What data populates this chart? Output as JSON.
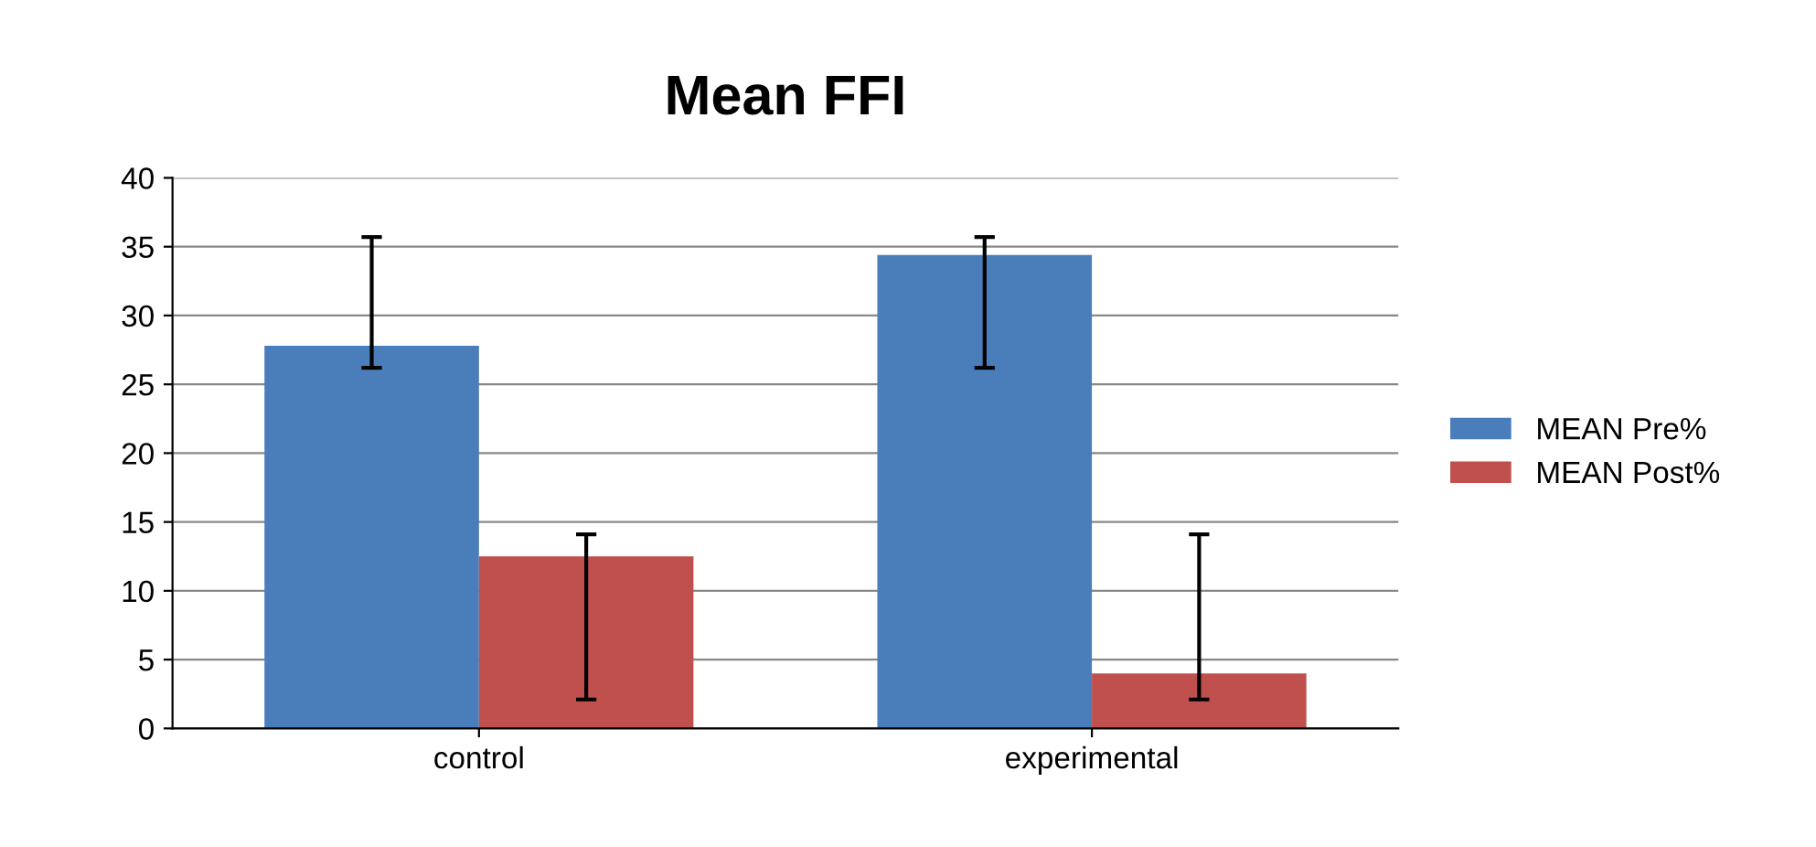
{
  "chart_data": {
    "type": "bar",
    "title": "Mean FFI",
    "categories": [
      "control",
      "experimental"
    ],
    "series": [
      {
        "name": "MEAN Pre%",
        "color": "#4a7ebb",
        "values": [
          27.8,
          34.4
        ],
        "errors": [
          [
            26.2,
            35.7
          ],
          [
            26.2,
            35.7
          ]
        ]
      },
      {
        "name": "MEAN Post%",
        "color": "#c0504d",
        "values": [
          12.5,
          4.0
        ],
        "errors": [
          [
            2.1,
            14.1
          ],
          [
            2.1,
            14.1
          ]
        ]
      }
    ],
    "ylim": [
      0,
      40
    ],
    "yticks": [
      0,
      5,
      10,
      15,
      20,
      25,
      30,
      35,
      40
    ],
    "grid": "y",
    "legend": "right"
  }
}
